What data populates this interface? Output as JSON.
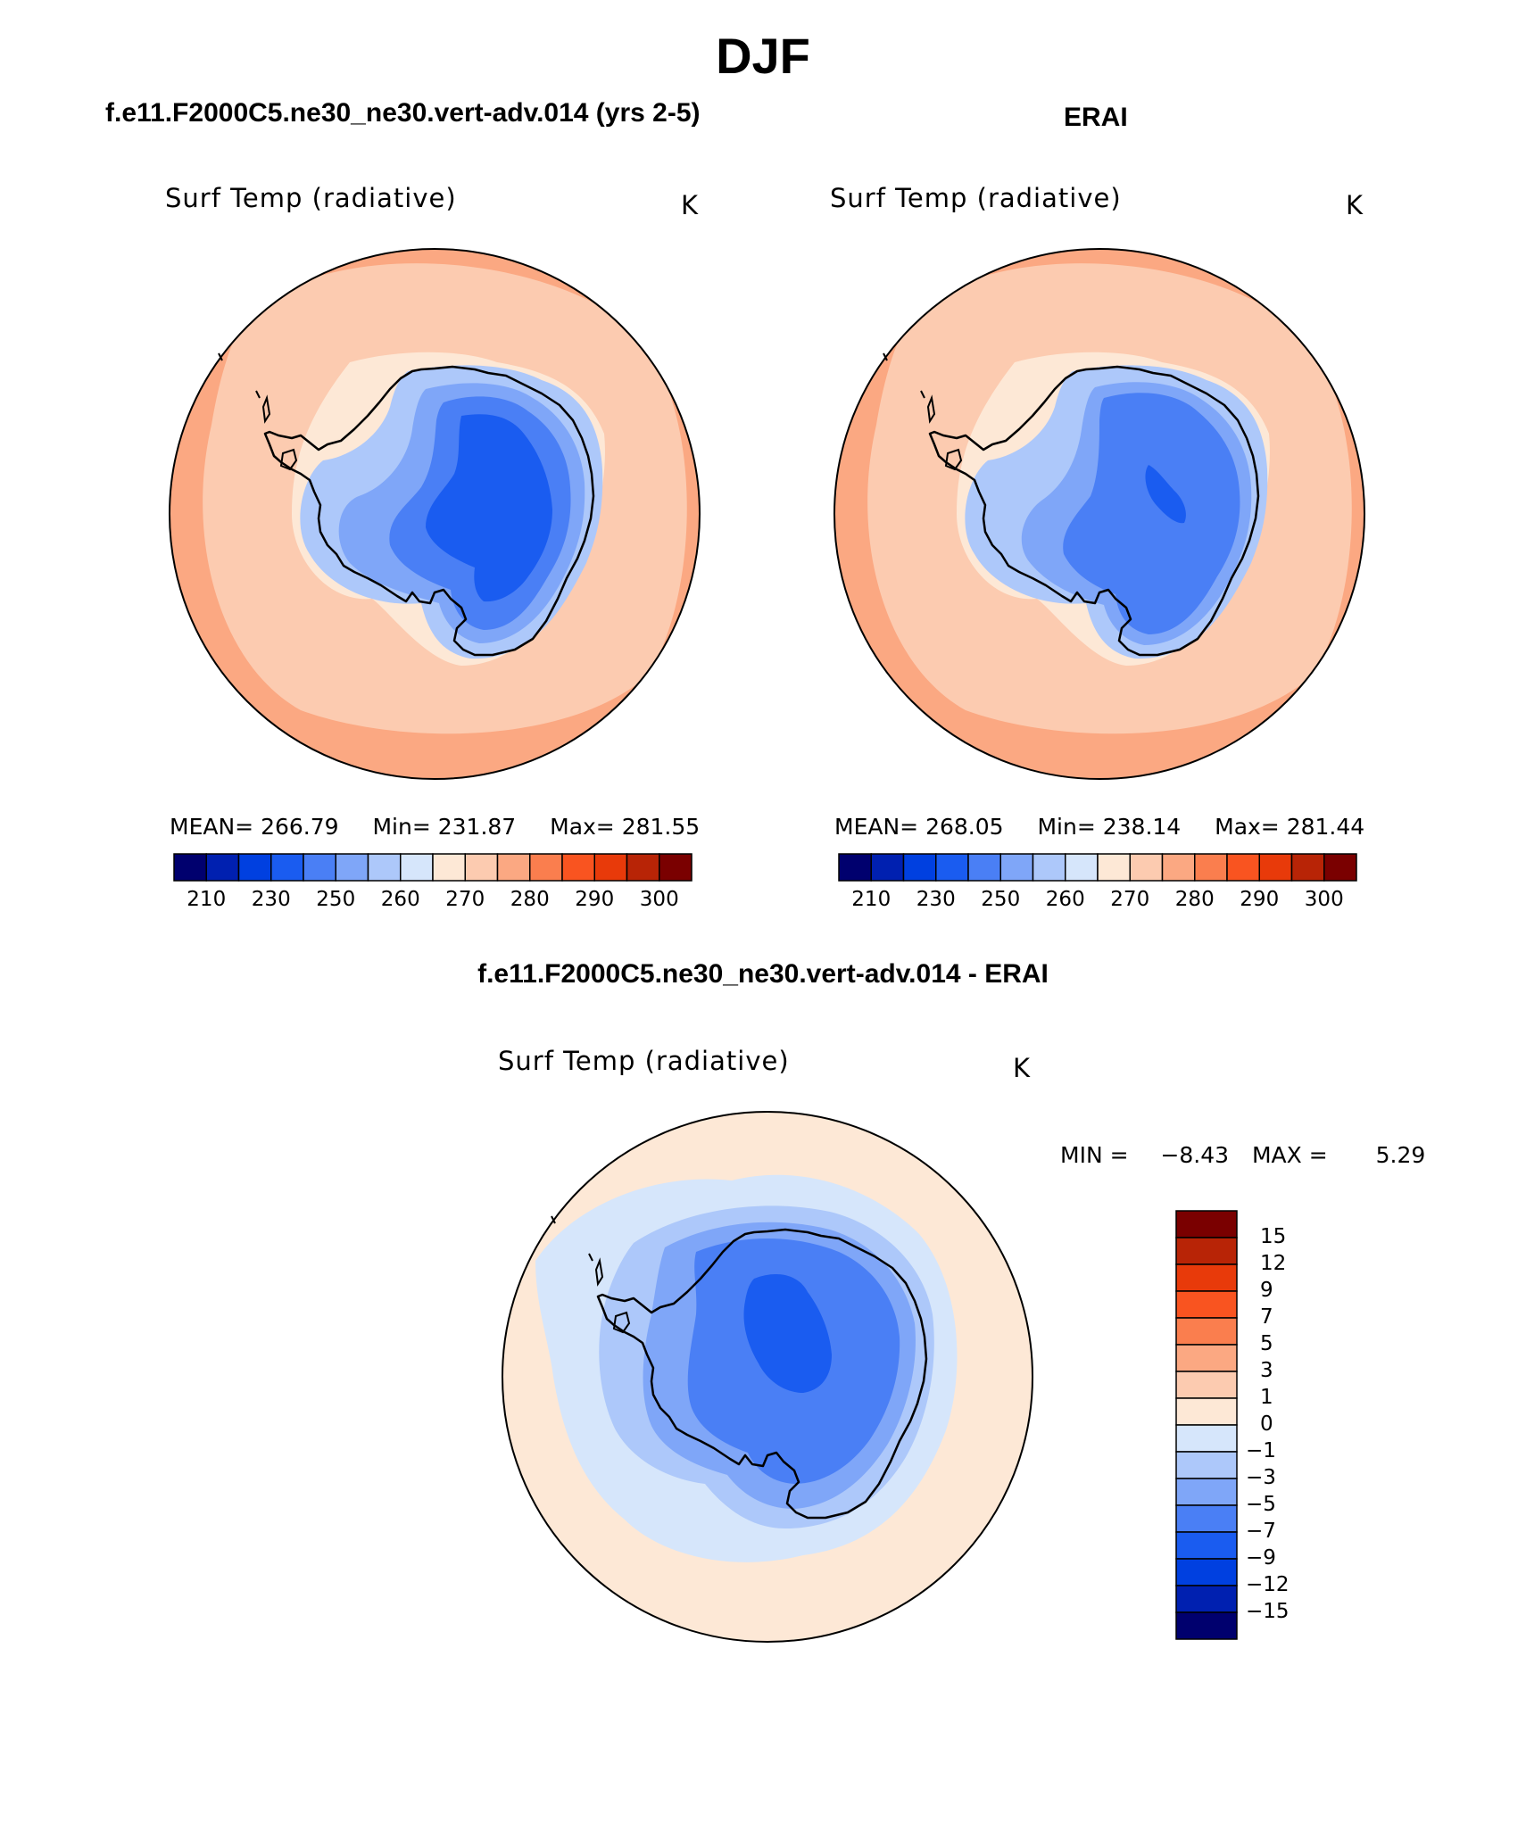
{
  "page": {
    "title": "DJF",
    "panel_left_title": "f.e11.F2000C5.ne30_ne30.vert-adv.014 (yrs 2-5)",
    "panel_right_title": "ERAI",
    "panel_diff_title": "f.e11.F2000C5.ne30_ne30.vert-adv.014 - ERAI"
  },
  "chart_data": [
    {
      "type": "heatmap",
      "projection": "south-polar-stereographic",
      "title": "f.e11.F2000C5.ne30_ne30.vert-adv.014 (yrs 2-5)",
      "variable": "Surf Temp (radiative)",
      "units": "K",
      "stats": {
        "mean_label": "MEAN=",
        "mean": "266.79",
        "min_label": "Min=",
        "min": "231.87",
        "max_label": "Max=",
        "max": "281.55"
      },
      "colorbar": {
        "orientation": "horizontal",
        "tick_labels": [
          "210",
          "230",
          "250",
          "260",
          "270",
          "280",
          "290",
          "300"
        ],
        "colors": [
          "#00006e",
          "#0020b0",
          "#0040e0",
          "#1a5cf0",
          "#4a7ff5",
          "#7fa6f8",
          "#adc8fa",
          "#d6e6fb",
          "#fde8d6",
          "#fccbb0",
          "#fba882",
          "#fa7e4e",
          "#f95420",
          "#e83a0a",
          "#b82406",
          "#7a0000"
        ]
      },
      "regions": {
        "ocean_outer": "#fba882",
        "ocean_mid": "#fccbb0",
        "coast": "#fde8d6",
        "ice_edge": "#adc8fa",
        "ice_mid": "#7fa6f8",
        "ice_interior": "#4a7ff5",
        "ice_plateau": "#1a5cf0"
      }
    },
    {
      "type": "heatmap",
      "projection": "south-polar-stereographic",
      "title": "ERAI",
      "variable": "Surf Temp (radiative)",
      "units": "K",
      "stats": {
        "mean_label": "MEAN=",
        "mean": "268.05",
        "min_label": "Min=",
        "min": "238.14",
        "max_label": "Max=",
        "max": "281.44"
      },
      "colorbar": {
        "orientation": "horizontal",
        "tick_labels": [
          "210",
          "230",
          "250",
          "260",
          "270",
          "280",
          "290",
          "300"
        ],
        "colors": [
          "#00006e",
          "#0020b0",
          "#0040e0",
          "#1a5cf0",
          "#4a7ff5",
          "#7fa6f8",
          "#adc8fa",
          "#d6e6fb",
          "#fde8d6",
          "#fccbb0",
          "#fba882",
          "#fa7e4e",
          "#f95420",
          "#e83a0a",
          "#b82406",
          "#7a0000"
        ]
      },
      "regions": {
        "ocean_outer": "#fba882",
        "ocean_mid": "#fccbb0",
        "coast": "#fde8d6",
        "ice_edge": "#adc8fa",
        "ice_mid": "#7fa6f8",
        "ice_interior": "#4a7ff5",
        "ice_plateau": "#1a5cf0"
      }
    },
    {
      "type": "heatmap",
      "projection": "south-polar-stereographic",
      "title": "f.e11.F2000C5.ne30_ne30.vert-adv.014 - ERAI",
      "variable": "Surf Temp (radiative)",
      "units": "K",
      "stats": {
        "min_label": "MIN =",
        "min": "−8.43",
        "max_label": "MAX =",
        "max": "5.29"
      },
      "colorbar": {
        "orientation": "vertical",
        "tick_labels": [
          "15",
          "12",
          "9",
          "7",
          "5",
          "3",
          "1",
          "0",
          "−1",
          "−3",
          "−5",
          "−7",
          "−9",
          "−12",
          "−15"
        ],
        "colors": [
          "#7a0000",
          "#b82406",
          "#e83a0a",
          "#f95420",
          "#fa7e4e",
          "#fba882",
          "#fccbb0",
          "#fde8d6",
          "#d6e6fb",
          "#adc8fa",
          "#7fa6f8",
          "#4a7ff5",
          "#1a5cf0",
          "#0040e0",
          "#0020b0",
          "#00006e"
        ]
      },
      "regions": {
        "ocean": "#fde8d6",
        "sea_ice_zone": "#d6e6fb",
        "ice_edge": "#adc8fa",
        "ice_mid": "#7fa6f8",
        "ice_interior": "#4a7ff5",
        "ice_core": "#1a5cf0"
      }
    }
  ]
}
